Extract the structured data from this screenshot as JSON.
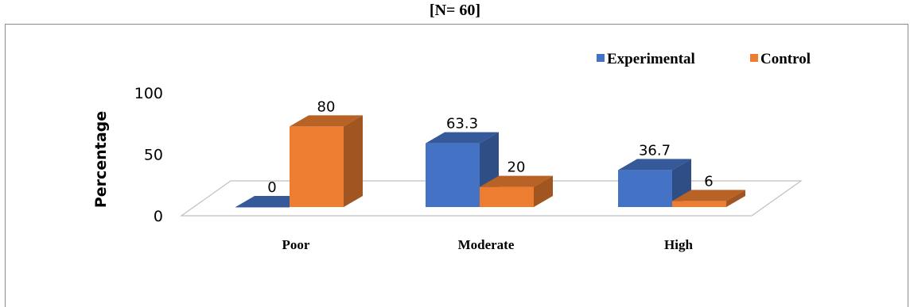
{
  "header": {
    "n_label": "[N= 60]"
  },
  "chart_data": {
    "type": "bar",
    "style": "3d-clustered-column",
    "categories": [
      "Poor",
      "Moderate",
      "High"
    ],
    "series": [
      {
        "name": "Experimental",
        "values": [
          0,
          63.3,
          36.7
        ],
        "labels": [
          "0",
          "63.3",
          "36.7"
        ],
        "color": "#4472C4"
      },
      {
        "name": "Control",
        "values": [
          80,
          20,
          6
        ],
        "labels": [
          "80",
          "20",
          "6"
        ],
        "color": "#ED7D31"
      }
    ],
    "ylabel": "Percentage",
    "xlabel": "",
    "ylim": [
      0,
      100
    ],
    "yticks": [
      "0",
      "50",
      "100"
    ],
    "legend_position": "top-right",
    "grid": false
  }
}
